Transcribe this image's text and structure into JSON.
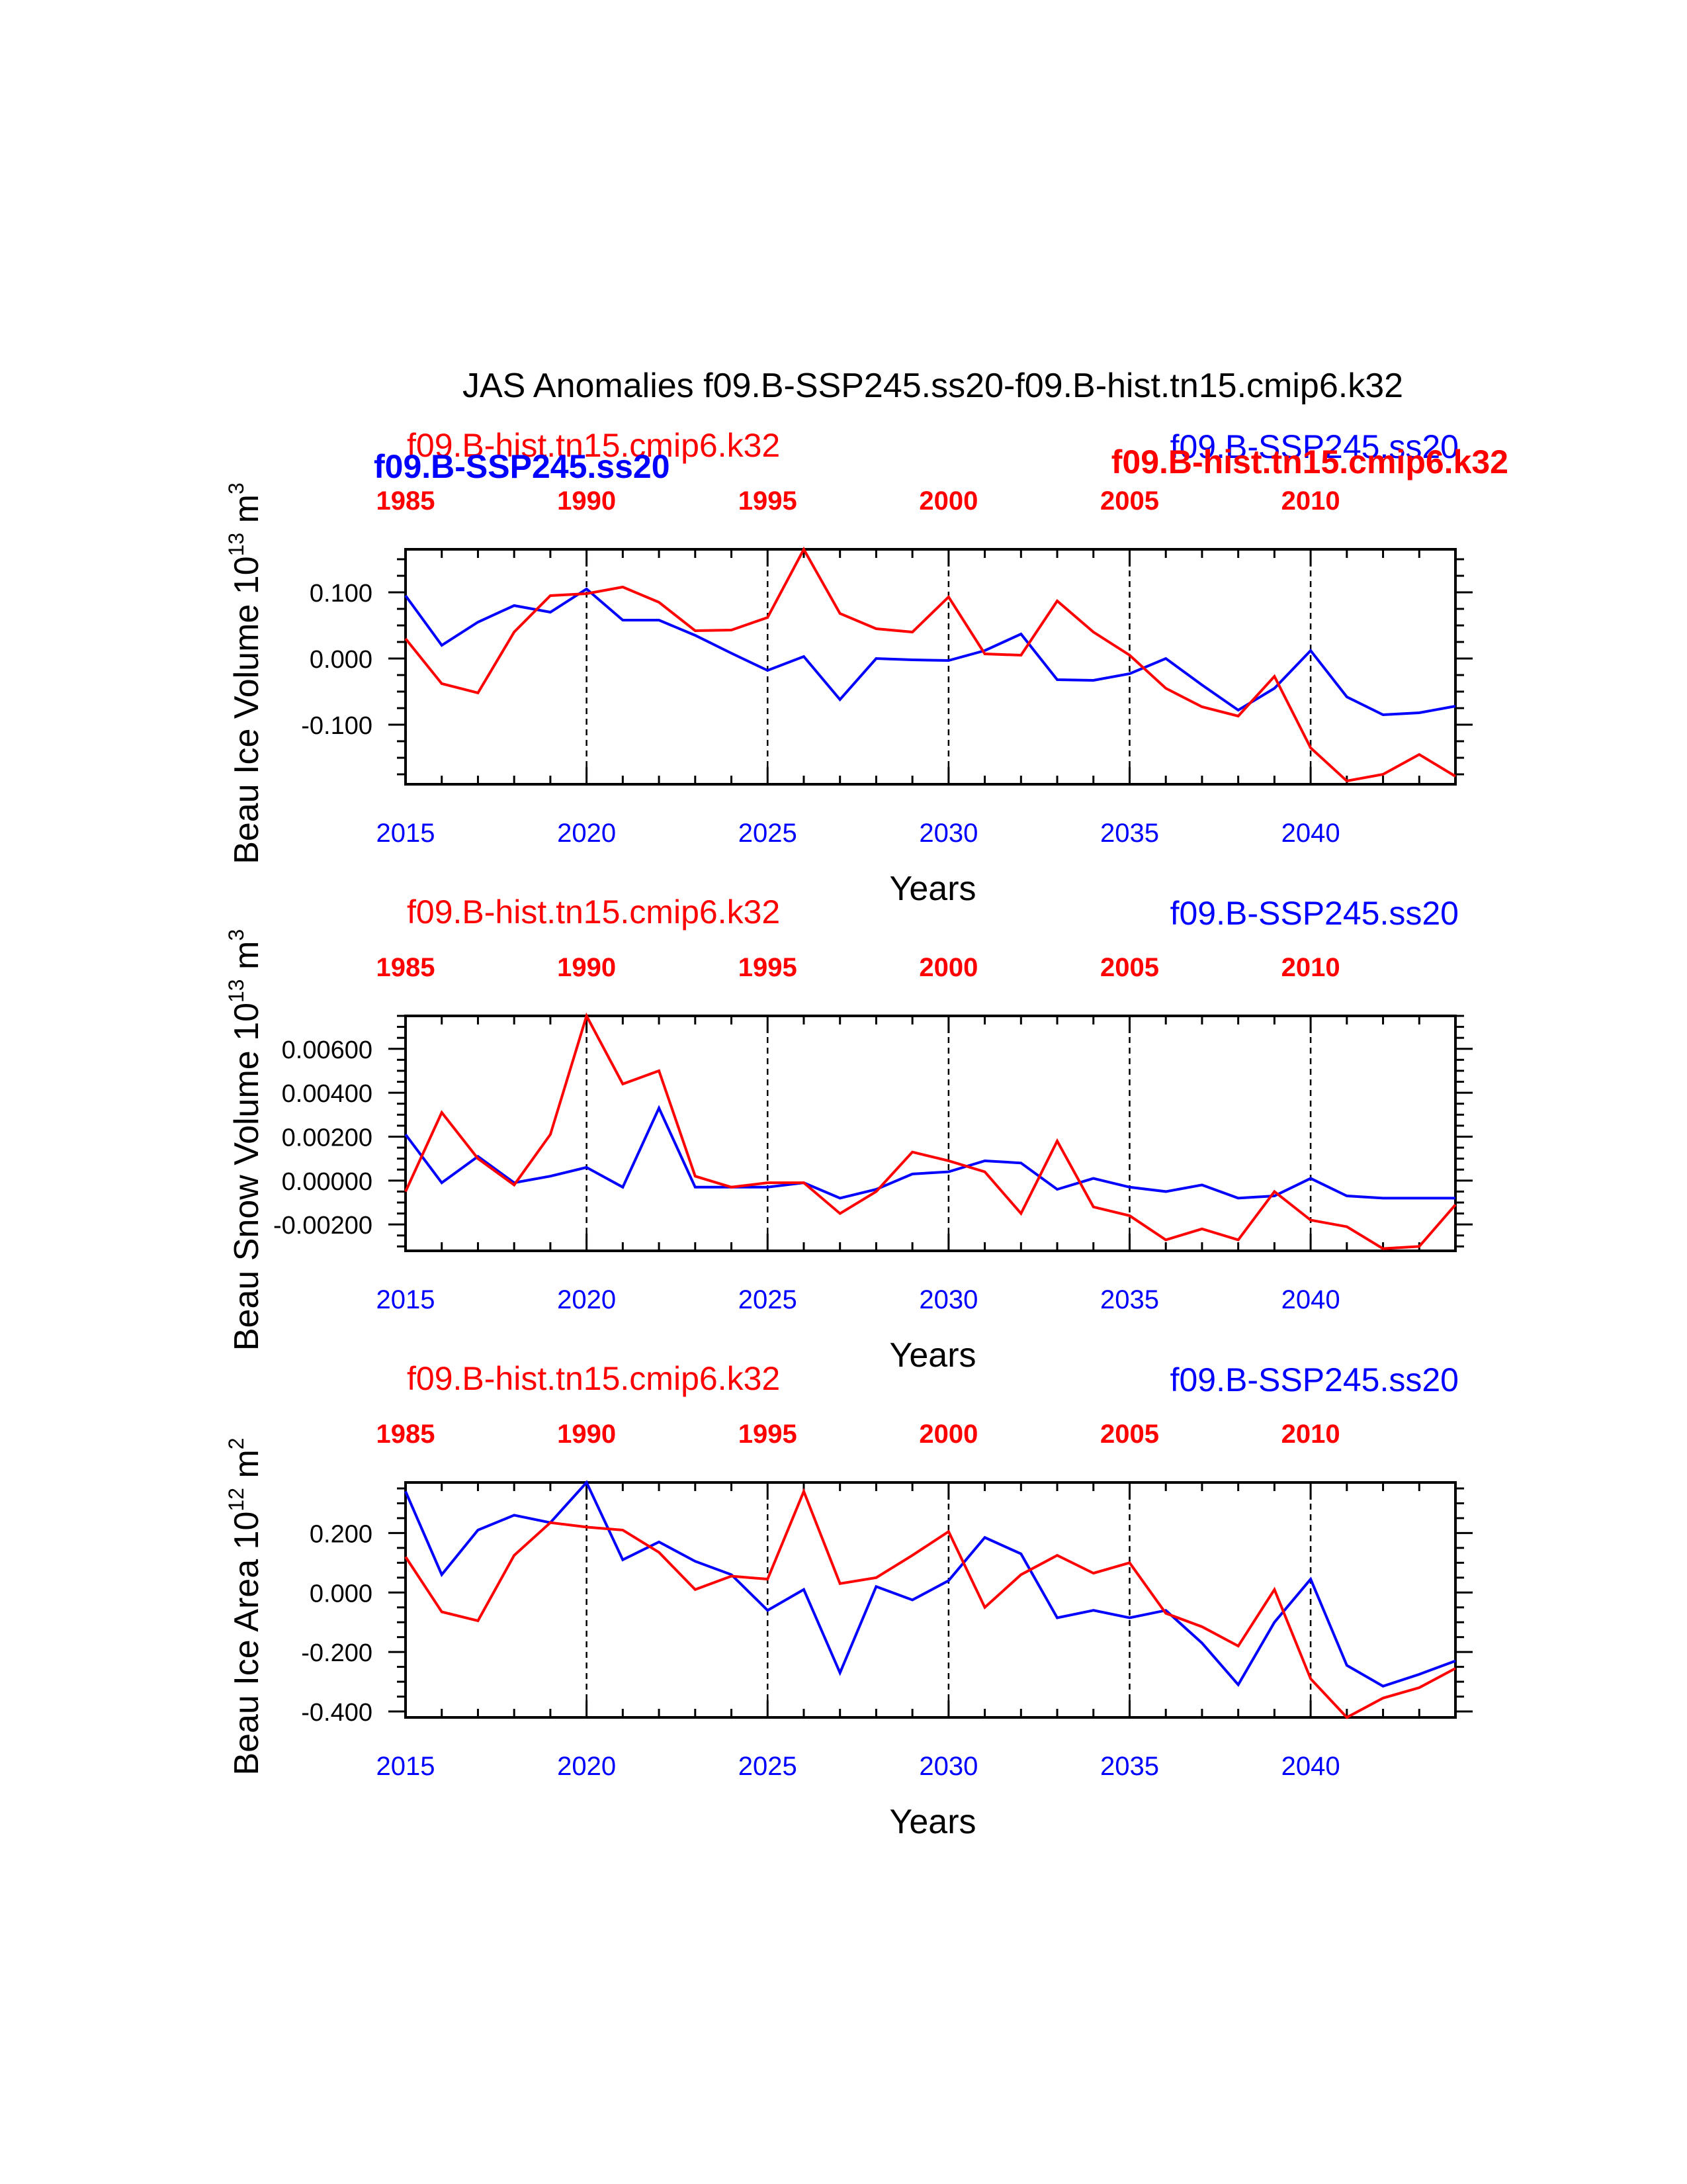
{
  "figure": {
    "title": "JAS Anomalies f09.B-SSP245.ss20-f09.B-hist.tn15.cmip6.k32",
    "legend_overlay": {
      "blue_label": "f09.B-SSP245.ss20",
      "red_label": "f09.B-hist.tn15.cmip6.k32"
    },
    "colors": {
      "blue": "#0000ff",
      "red": "#ff0000",
      "axis": "#000000"
    }
  },
  "chart_data": [
    {
      "type": "line",
      "ylabel": "Beau Ice Volume 10",
      "ylabel_sup": "13",
      "ylabel_unit": " m",
      "ylabel_unit_sup": "3",
      "xlabel": "Years",
      "top_left_label": "f09.B-hist.tn15.cmip6.k32",
      "top_right_label": "f09.B-SSP245.ss20",
      "xlim": [
        2015,
        2044
      ],
      "ylim": [
        -0.19,
        0.165
      ],
      "yticks": [
        -0.1,
        0.0,
        0.1
      ],
      "ytick_labels": [
        "-0.100",
        "0.000",
        "0.100"
      ],
      "bottom_x_ticks": [
        "2015",
        "2020",
        "2025",
        "2030",
        "2035",
        "2040"
      ],
      "top_x_ticks": [
        "1985",
        "1990",
        "1995",
        "2000",
        "2005",
        "2010"
      ],
      "x": [
        2015,
        2016,
        2017,
        2018,
        2019,
        2020,
        2021,
        2022,
        2023,
        2024,
        2025,
        2026,
        2027,
        2028,
        2029,
        2030,
        2031,
        2032,
        2033,
        2034,
        2035,
        2036,
        2037,
        2038,
        2039,
        2040,
        2041,
        2042,
        2043,
        2044
      ],
      "series": [
        {
          "name": "f09.B-SSP245.ss20",
          "color": "#0000ff",
          "values": [
            0.095,
            0.02,
            0.055,
            0.08,
            0.07,
            0.105,
            0.058,
            0.058,
            0.035,
            0.008,
            -0.018,
            0.003,
            -0.062,
            0.0,
            -0.002,
            -0.003,
            0.012,
            0.037,
            -0.032,
            -0.033,
            -0.023,
            0.0,
            -0.04,
            -0.078,
            -0.045,
            0.012,
            -0.058,
            -0.085,
            -0.082,
            -0.072
          ]
        },
        {
          "name": "f09.B-hist.tn15.cmip6.k32",
          "color": "#ff0000",
          "values": [
            0.03,
            -0.038,
            -0.052,
            0.04,
            0.095,
            0.098,
            0.108,
            0.085,
            0.042,
            0.043,
            0.062,
            0.165,
            0.068,
            0.045,
            0.04,
            0.093,
            0.007,
            0.005,
            0.087,
            0.04,
            0.005,
            -0.045,
            -0.073,
            -0.087,
            -0.027,
            -0.135,
            -0.185,
            -0.175,
            -0.145,
            -0.178
          ]
        }
      ]
    },
    {
      "type": "line",
      "ylabel": "Beau Snow Volume 10",
      "ylabel_sup": "13",
      "ylabel_unit": " m",
      "ylabel_unit_sup": "3",
      "xlabel": "Years",
      "top_left_label": "f09.B-hist.tn15.cmip6.k32",
      "top_right_label": "f09.B-SSP245.ss20",
      "xlim": [
        2015,
        2044
      ],
      "ylim": [
        -0.0032,
        0.0075
      ],
      "yticks": [
        -0.002,
        0.0,
        0.002,
        0.004,
        0.006
      ],
      "ytick_labels": [
        "-0.00200",
        "0.00000",
        "0.00200",
        "0.00400",
        "0.00600"
      ],
      "bottom_x_ticks": [
        "2015",
        "2020",
        "2025",
        "2030",
        "2035",
        "2040"
      ],
      "top_x_ticks": [
        "1985",
        "1990",
        "1995",
        "2000",
        "2005",
        "2010"
      ],
      "x": [
        2015,
        2016,
        2017,
        2018,
        2019,
        2020,
        2021,
        2022,
        2023,
        2024,
        2025,
        2026,
        2027,
        2028,
        2029,
        2030,
        2031,
        2032,
        2033,
        2034,
        2035,
        2036,
        2037,
        2038,
        2039,
        2040,
        2041,
        2042,
        2043,
        2044
      ],
      "series": [
        {
          "name": "f09.B-SSP245.ss20",
          "color": "#0000ff",
          "values": [
            0.0021,
            -0.0001,
            0.0011,
            -0.0001,
            0.0002,
            0.0006,
            -0.0003,
            0.0033,
            -0.0003,
            -0.0003,
            -0.0003,
            -0.0001,
            -0.0008,
            -0.0004,
            0.0003,
            0.0004,
            0.0009,
            0.0008,
            -0.0004,
            0.0001,
            -0.0003,
            -0.0005,
            -0.0002,
            -0.0008,
            -0.0007,
            0.0001,
            -0.0007,
            -0.0008,
            -0.0008,
            -0.0008
          ]
        },
        {
          "name": "f09.B-hist.tn15.cmip6.k32",
          "color": "#ff0000",
          "values": [
            -0.0005,
            0.0031,
            0.001,
            -0.0002,
            0.0021,
            0.0075,
            0.0044,
            0.005,
            0.0002,
            -0.0003,
            -0.0001,
            -0.0001,
            -0.0015,
            -0.0005,
            0.0013,
            0.0009,
            0.0004,
            -0.0015,
            0.0018,
            -0.0012,
            -0.0016,
            -0.0027,
            -0.0022,
            -0.0027,
            -0.0005,
            -0.0018,
            -0.0021,
            -0.0031,
            -0.003,
            -0.0011
          ]
        }
      ]
    },
    {
      "type": "line",
      "ylabel": "Beau Ice Area 10",
      "ylabel_sup": "12",
      "ylabel_unit": " m",
      "ylabel_unit_sup": "2",
      "xlabel": "Years",
      "top_left_label": "f09.B-hist.tn15.cmip6.k32",
      "top_right_label": "f09.B-SSP245.ss20",
      "xlim": [
        2015,
        2044
      ],
      "ylim": [
        -0.42,
        0.37
      ],
      "yticks": [
        -0.4,
        -0.2,
        0.0,
        0.2
      ],
      "ytick_labels": [
        "-0.400",
        "-0.200",
        "0.000",
        "0.200"
      ],
      "bottom_x_ticks": [
        "2015",
        "2020",
        "2025",
        "2030",
        "2035",
        "2040"
      ],
      "top_x_ticks": [
        "1985",
        "1990",
        "1995",
        "2000",
        "2005",
        "2010"
      ],
      "x": [
        2015,
        2016,
        2017,
        2018,
        2019,
        2020,
        2021,
        2022,
        2023,
        2024,
        2025,
        2026,
        2027,
        2028,
        2029,
        2030,
        2031,
        2032,
        2033,
        2034,
        2035,
        2036,
        2037,
        2038,
        2039,
        2040,
        2041,
        2042,
        2043,
        2044
      ],
      "series": [
        {
          "name": "f09.B-SSP245.ss20",
          "color": "#0000ff",
          "values": [
            0.34,
            0.06,
            0.21,
            0.26,
            0.235,
            0.37,
            0.11,
            0.17,
            0.105,
            0.06,
            -0.06,
            0.01,
            -0.27,
            0.02,
            -0.025,
            0.04,
            0.185,
            0.13,
            -0.085,
            -0.06,
            -0.085,
            -0.06,
            -0.17,
            -0.31,
            -0.1,
            0.045,
            -0.245,
            -0.315,
            -0.275,
            -0.23
          ]
        },
        {
          "name": "f09.B-hist.tn15.cmip6.k32",
          "color": "#ff0000",
          "values": [
            0.12,
            -0.065,
            -0.095,
            0.125,
            0.235,
            0.22,
            0.21,
            0.135,
            0.01,
            0.055,
            0.045,
            0.34,
            0.03,
            0.05,
            0.125,
            0.205,
            -0.05,
            0.06,
            0.125,
            0.065,
            0.1,
            -0.07,
            -0.115,
            -0.18,
            0.01,
            -0.29,
            -0.42,
            -0.355,
            -0.32,
            -0.255
          ]
        }
      ]
    }
  ]
}
